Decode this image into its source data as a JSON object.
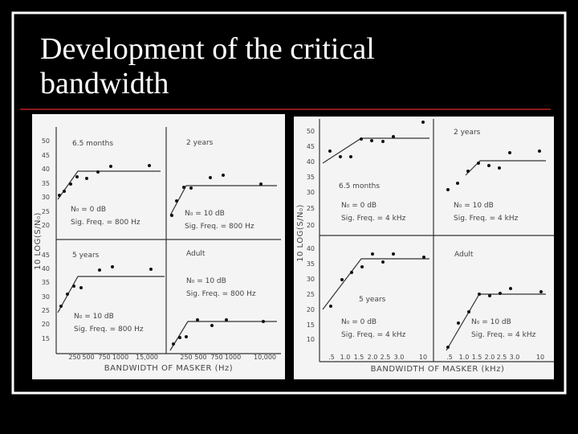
{
  "title": "Development of the critical bandwidth",
  "figures": [
    {
      "y_axis_label": "10 LOG(S/N₀)",
      "x_axis_label": "BANDWIDTH OF MASKER (Hz)",
      "panels": [
        {
          "label": "6.5 months",
          "noise": "N₀ = 0 dB",
          "signal": "Sig. Freq. = 800 Hz"
        },
        {
          "label": "2 years",
          "noise": "N₀ = 10 dB",
          "signal": "Sig. Freq. = 800 Hz"
        },
        {
          "label": "5 years",
          "noise": "N₀ = 10 dB",
          "signal": "Sig. Freq. = 800 Hz"
        },
        {
          "label": "Adult",
          "noise": "N₀ = 10 dB",
          "signal": "Sig. Freq. = 800 Hz"
        }
      ],
      "y_ticks_top": [
        "50",
        "45",
        "40",
        "35",
        "30",
        "25",
        "20"
      ],
      "y_ticks_bottom": [
        "45",
        "40",
        "35",
        "30",
        "25",
        "20",
        "15"
      ],
      "x_ticks_left": [
        "250",
        "500",
        "750",
        "1000",
        "15,000"
      ],
      "x_ticks_right": [
        "250",
        "500",
        "750",
        "1000",
        "10,000"
      ]
    },
    {
      "y_axis_label": "10 LOG(S/N₀)",
      "x_axis_label": "BANDWIDTH OF MASKER (kHz)",
      "panels": [
        {
          "label": "6.5 months",
          "noise": "N₀ = 0 dB",
          "signal": "Sig. Freq. = 4 kHz"
        },
        {
          "label": "2 years",
          "noise": "N₀ = 10 dB",
          "signal": "Sig. Freq. = 4 kHz"
        },
        {
          "label": "5 years",
          "noise": "N₀ = 0 dB",
          "signal": "Sig. Freq. = 4 kHz"
        },
        {
          "label": "Adult",
          "noise": "N₀ = 10 dB",
          "signal": "Sig. Freq. = 4 kHz"
        }
      ],
      "y_ticks_top": [
        "50",
        "45",
        "40",
        "35",
        "30",
        "25",
        "20"
      ],
      "y_ticks_bottom": [
        "40",
        "35",
        "30",
        "25",
        "20",
        "15",
        "10"
      ],
      "x_ticks_left": [
        ".5",
        "1.0",
        "1.5",
        "2.0",
        "2.5",
        "3.0",
        "10"
      ],
      "x_ticks_right": [
        ".5",
        "1.0",
        "1.5",
        "2.0",
        "2.5",
        "3.0",
        "10"
      ]
    }
  ]
}
